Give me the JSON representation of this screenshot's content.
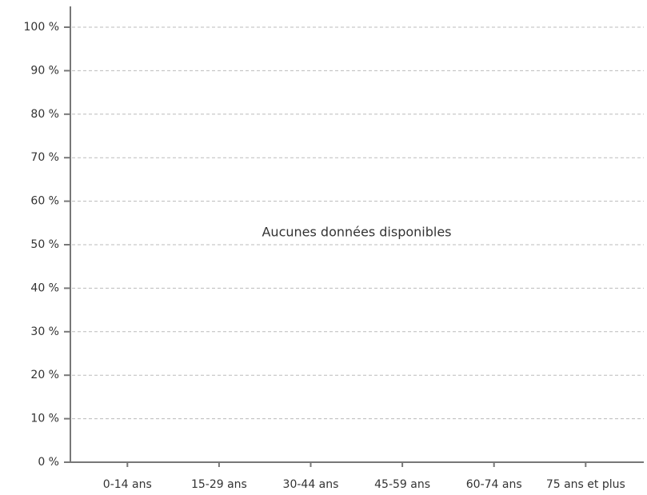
{
  "chart_data": {
    "type": "bar",
    "annotation": "Aucunes données disponibles",
    "categories": [
      "0-14 ans",
      "15-29 ans",
      "30-44 ans",
      "45-59 ans",
      "60-74 ans",
      "75 ans et plus"
    ],
    "ylim": [
      0,
      100
    ],
    "yticks": [
      {
        "value": 0,
        "label": "0 %"
      },
      {
        "value": 10,
        "label": "10 %"
      },
      {
        "value": 20,
        "label": "20 %"
      },
      {
        "value": 30,
        "label": "30 %"
      },
      {
        "value": 40,
        "label": "40 %"
      },
      {
        "value": 50,
        "label": "50 %"
      },
      {
        "value": 60,
        "label": "60 %"
      },
      {
        "value": 70,
        "label": "70 %"
      },
      {
        "value": 80,
        "label": "80 %"
      },
      {
        "value": 90,
        "label": "90 %"
      },
      {
        "value": 100,
        "label": "100 %"
      }
    ],
    "grid": true
  }
}
